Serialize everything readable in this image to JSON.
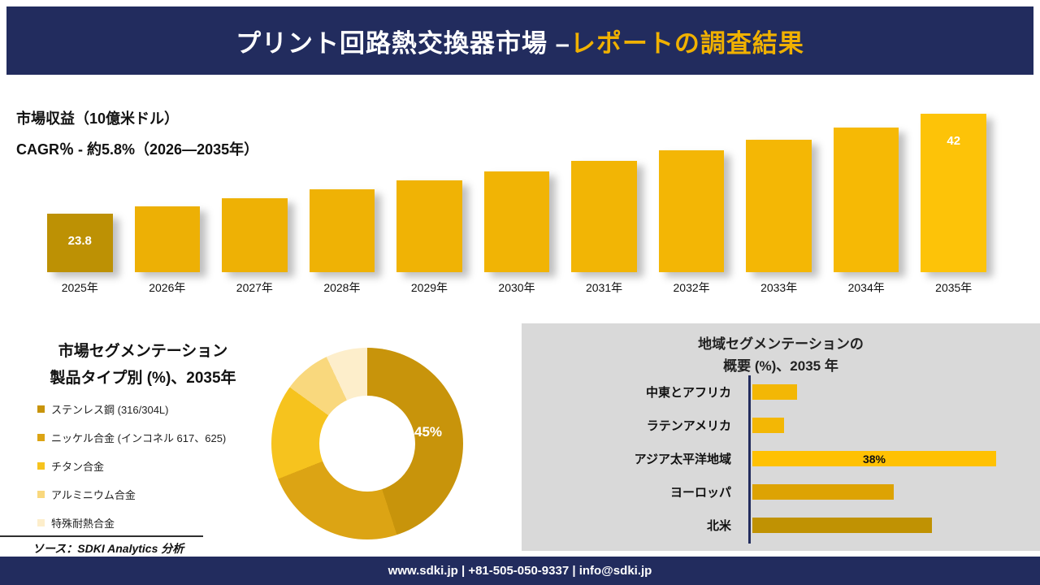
{
  "header": {
    "title_white": "プリント回路熱交換器市場 –",
    "title_gold": "レポートの調査結果"
  },
  "revenue_section": {
    "metric_label": "市場収益（10億米ドル）",
    "cagr_label": "CAGR％ - 約5.8%（2026―2035年）"
  },
  "segmentation_section": {
    "title_line1": "市場セグメンテーション",
    "title_line2": "製品タイプ別 (%)、2035年"
  },
  "regional_section": {
    "title_line1": "地域セグメンテーションの",
    "title_line2": "概要 (%)、2035 年"
  },
  "source_note": "ソース：SDKI Analytics 分析",
  "footer_text": "www.sdki.jp | +81-505-050-9337 | info@sdki.jp",
  "colors": {
    "navy": "#222c5e",
    "gold_accent": "#f0b100",
    "panel_gray": "#d9d9d9"
  },
  "chart_data": [
    {
      "type": "bar",
      "orientation": "vertical",
      "title": "市場収益（10億米ドル）",
      "subtitle": "CAGR％ - 約5.8%（2026―2035年）",
      "categories": [
        "2025年",
        "2026年",
        "2027年",
        "2028年",
        "2029年",
        "2030年",
        "2031年",
        "2032年",
        "2033年",
        "2034年",
        "2035年"
      ],
      "values": [
        23.8,
        25.2,
        26.6,
        28.2,
        29.8,
        31.5,
        33.4,
        35.3,
        37.3,
        39.5,
        42
      ],
      "data_labels": {
        "2025年": "23.8",
        "2035年": "42"
      },
      "bar_colors": [
        "#bd9104",
        "#edb005",
        "#eeb105",
        "#efb205",
        "#f0b305",
        "#f1b405",
        "#f2b505",
        "#f3b605",
        "#f4b705",
        "#f6b905",
        "#fdc308"
      ],
      "ylim": [
        0,
        45
      ],
      "grid": false,
      "legend": false
    },
    {
      "type": "pie",
      "subtype": "donut",
      "title": "市場セグメンテーション 製品タイプ別 (%)、2035年",
      "labels": [
        "ステンレス鋼 (316/304L)",
        "ニッケル合金 (インコネル 617、625)",
        "チタン合金",
        "アルミニウム合金",
        "特殊耐熱合金"
      ],
      "values": [
        45,
        24,
        16,
        8,
        7
      ],
      "colors": [
        "#c8940b",
        "#dca414",
        "#f6c31e",
        "#f9d87d",
        "#fdeecb"
      ],
      "annotation": "45%",
      "legend_position": "left"
    },
    {
      "type": "bar",
      "orientation": "horizontal",
      "title": "地域セグメンテーションの概要 (%)、2035 年",
      "categories": [
        "中東とアフリカ",
        "ラテンアメリカ",
        "アジア太平洋地域",
        "ヨーロッパ",
        "北米"
      ],
      "values": [
        7,
        5,
        38,
        22,
        28
      ],
      "data_labels": {
        "アジア太平洋地域": "38%"
      },
      "bar_colors": [
        "#f3b705",
        "#f3b705",
        "#ffc103",
        "#dda303",
        "#c09203"
      ],
      "xlim": [
        0,
        40
      ],
      "grid": false,
      "legend": false
    }
  ]
}
